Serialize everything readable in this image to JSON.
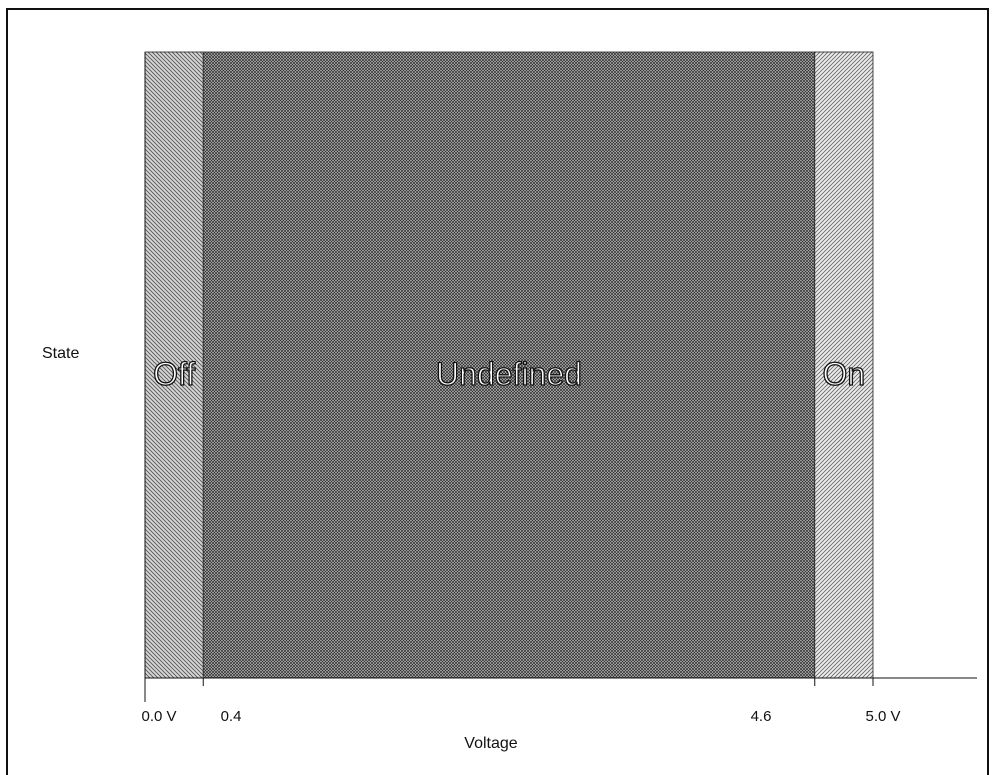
{
  "chart_data": {
    "type": "bar",
    "xlabel": "Voltage",
    "ylabel": "State",
    "xlim": [
      0.0,
      5.0
    ],
    "x_ticks": [
      {
        "value": 0.0,
        "label": "0.0 V"
      },
      {
        "value": 0.4,
        "label": "0.4"
      },
      {
        "value": 4.6,
        "label": "4.6"
      },
      {
        "value": 5.0,
        "label": "5.0 V"
      }
    ],
    "regions": [
      {
        "label": "Off",
        "x_start": 0.0,
        "x_end": 0.4,
        "pattern": "diagonal-left",
        "color": "#cfcfcf"
      },
      {
        "label": "Undefined",
        "x_start": 0.4,
        "x_end": 4.6,
        "pattern": "crosshatch",
        "color": "#8a8a8a"
      },
      {
        "label": "On",
        "x_start": 4.6,
        "x_end": 5.0,
        "pattern": "diagonal-right",
        "color": "#e4e4e4"
      }
    ],
    "grid": false,
    "legend": "none"
  }
}
